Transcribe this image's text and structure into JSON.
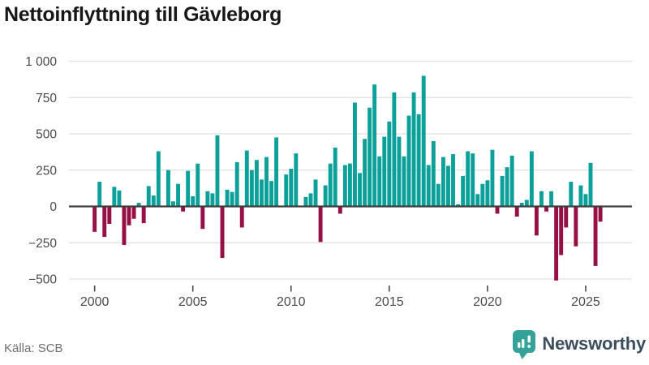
{
  "title": "Nettoinflyttning till Gävleborg",
  "source": "Källa: SCB",
  "logo": {
    "text": "Newsworthy",
    "icon": "newsworthy-chart-bubble-icon",
    "icon_color": "#35a29a",
    "text_color": "#3c4e5e"
  },
  "colors": {
    "positive_bar": "#0ba09a",
    "negative_bar": "#960f45",
    "zero_line": "#3d3d3d",
    "gridline": "#e1e1e1",
    "axis_text": "#4a4a4a",
    "title_text": "#171717",
    "source_text": "#6f6f6f",
    "background": "#ffffff"
  },
  "chart_data": {
    "type": "bar",
    "title": "Nettoinflyttning till Gävleborg",
    "xlabel": "",
    "ylabel": "",
    "x_unit": "quarter",
    "ylim": [
      -500,
      1000
    ],
    "grid": true,
    "legend": false,
    "yticks": [
      {
        "value": 1000,
        "label": "1 000"
      },
      {
        "value": 750,
        "label": "750"
      },
      {
        "value": 500,
        "label": "500"
      },
      {
        "value": 250,
        "label": "250"
      },
      {
        "value": 0,
        "label": "0"
      },
      {
        "value": -250,
        "label": "−250"
      },
      {
        "value": -500,
        "label": "−500"
      }
    ],
    "xticks": [
      {
        "index": 0,
        "label": "2000"
      },
      {
        "index": 20,
        "label": "2005"
      },
      {
        "index": 40,
        "label": "2010"
      },
      {
        "index": 60,
        "label": "2015"
      },
      {
        "index": 80,
        "label": "2020"
      },
      {
        "index": 100,
        "label": "2025"
      }
    ],
    "categories": [
      "2000Q1",
      "2000Q2",
      "2000Q3",
      "2000Q4",
      "2001Q1",
      "2001Q2",
      "2001Q3",
      "2001Q4",
      "2002Q1",
      "2002Q2",
      "2002Q3",
      "2002Q4",
      "2003Q1",
      "2003Q2",
      "2003Q3",
      "2003Q4",
      "2004Q1",
      "2004Q2",
      "2004Q3",
      "2004Q4",
      "2005Q1",
      "2005Q2",
      "2005Q3",
      "2005Q4",
      "2006Q1",
      "2006Q2",
      "2006Q3",
      "2006Q4",
      "2007Q1",
      "2007Q2",
      "2007Q3",
      "2007Q4",
      "2008Q1",
      "2008Q2",
      "2008Q3",
      "2008Q4",
      "2009Q1",
      "2009Q2",
      "2009Q3",
      "2009Q4",
      "2010Q1",
      "2010Q2",
      "2010Q3",
      "2010Q4",
      "2011Q1",
      "2011Q2",
      "2011Q3",
      "2011Q4",
      "2012Q1",
      "2012Q2",
      "2012Q3",
      "2012Q4",
      "2013Q1",
      "2013Q2",
      "2013Q3",
      "2013Q4",
      "2014Q1",
      "2014Q2",
      "2014Q3",
      "2014Q4",
      "2015Q1",
      "2015Q2",
      "2015Q3",
      "2015Q4",
      "2016Q1",
      "2016Q2",
      "2016Q3",
      "2016Q4",
      "2017Q1",
      "2017Q2",
      "2017Q3",
      "2017Q4",
      "2018Q1",
      "2018Q2",
      "2018Q3",
      "2018Q4",
      "2019Q1",
      "2019Q2",
      "2019Q3",
      "2019Q4",
      "2020Q1",
      "2020Q2",
      "2020Q3",
      "2020Q4",
      "2021Q1",
      "2021Q2",
      "2021Q3",
      "2021Q4",
      "2022Q1",
      "2022Q2",
      "2022Q3",
      "2022Q4",
      "2023Q1",
      "2023Q2",
      "2023Q3",
      "2023Q4",
      "2024Q1",
      "2024Q2",
      "2024Q3",
      "2024Q4",
      "2025Q1",
      "2025Q2",
      "2025Q3",
      "2025Q4"
    ],
    "values": [
      -175,
      170,
      -210,
      -120,
      135,
      110,
      -265,
      -130,
      -85,
      25,
      -115,
      140,
      75,
      380,
      5,
      250,
      35,
      155,
      -35,
      245,
      70,
      295,
      -155,
      105,
      90,
      490,
      -355,
      115,
      100,
      305,
      -145,
      385,
      250,
      320,
      185,
      340,
      175,
      475,
      5,
      220,
      260,
      365,
      5,
      65,
      90,
      185,
      -245,
      145,
      295,
      405,
      -50,
      285,
      295,
      715,
      230,
      465,
      680,
      840,
      345,
      480,
      585,
      785,
      480,
      345,
      625,
      785,
      635,
      900,
      285,
      450,
      155,
      340,
      280,
      360,
      15,
      210,
      380,
      365,
      85,
      155,
      180,
      390,
      -50,
      210,
      270,
      350,
      -70,
      25,
      45,
      380,
      -200,
      105,
      -35,
      105,
      -510,
      -335,
      -145,
      170,
      -275,
      145,
      85,
      300,
      -410,
      -105
    ]
  }
}
